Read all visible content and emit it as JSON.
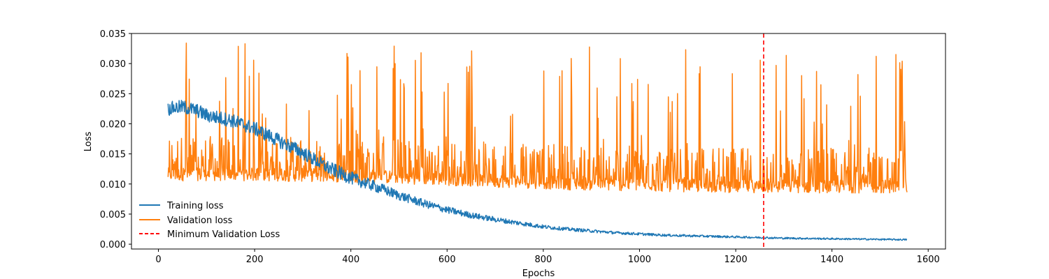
{
  "chart_data": {
    "type": "line",
    "title": "",
    "xlabel": "Epochs",
    "ylabel": "Loss",
    "xlim": [
      -56,
      1636
    ],
    "ylim": [
      -0.0008,
      0.035
    ],
    "x_ticks": [
      0,
      200,
      400,
      600,
      800,
      1000,
      1200,
      1400,
      1600
    ],
    "x_tick_labels": [
      "0",
      "200",
      "400",
      "600",
      "800",
      "1000",
      "1200",
      "1400",
      "1600"
    ],
    "y_ticks": [
      0.0,
      0.005,
      0.01,
      0.015,
      0.02,
      0.025,
      0.03,
      0.035
    ],
    "y_tick_labels": [
      "0.000",
      "0.005",
      "0.010",
      "0.015",
      "0.020",
      "0.025",
      "0.030",
      "0.035"
    ],
    "grid": false,
    "legend": "lower-left",
    "series": [
      {
        "name": "Training loss",
        "color": "#1f77b4",
        "style": "solid",
        "x": [
          20,
          50,
          80,
          100,
          150,
          200,
          250,
          300,
          350,
          400,
          450,
          500,
          550,
          600,
          650,
          700,
          750,
          800,
          850,
          900,
          950,
          1000,
          1050,
          1100,
          1150,
          1200,
          1250,
          1300,
          1350,
          1400,
          1450,
          1500,
          1556
        ],
        "y": [
          0.0225,
          0.0228,
          0.0222,
          0.0214,
          0.0206,
          0.0192,
          0.0172,
          0.0152,
          0.0128,
          0.011,
          0.0096,
          0.0081,
          0.0068,
          0.0057,
          0.0048,
          0.0041,
          0.0035,
          0.0029,
          0.0025,
          0.0022,
          0.0019,
          0.0017,
          0.0015,
          0.0014,
          0.0013,
          0.0012,
          0.0011,
          0.001,
          0.00095,
          0.0009,
          0.00085,
          0.0008,
          0.00075
        ],
        "noise": 0.0011
      },
      {
        "name": "Validation loss",
        "color": "#ff7f0e",
        "style": "solid",
        "x_start": 20,
        "x_end": 1556,
        "baseline": [
          0.0105,
          0.0105,
          0.0104,
          0.0102,
          0.0098,
          0.0094,
          0.009,
          0.0088,
          0.0086,
          0.0085,
          0.0085,
          0.0085
        ],
        "typical_peak": 0.019,
        "max_peak": 0.0335,
        "peak_points": [
          [
            58,
            0.0334
          ],
          [
            180,
            0.0333
          ],
          [
            490,
            0.0329
          ],
          [
            1492,
            0.0312
          ]
        ]
      },
      {
        "name": "Minimum Validation Loss",
        "color": "#ff0000",
        "style": "dashed",
        "vline_x": 1258
      }
    ]
  }
}
